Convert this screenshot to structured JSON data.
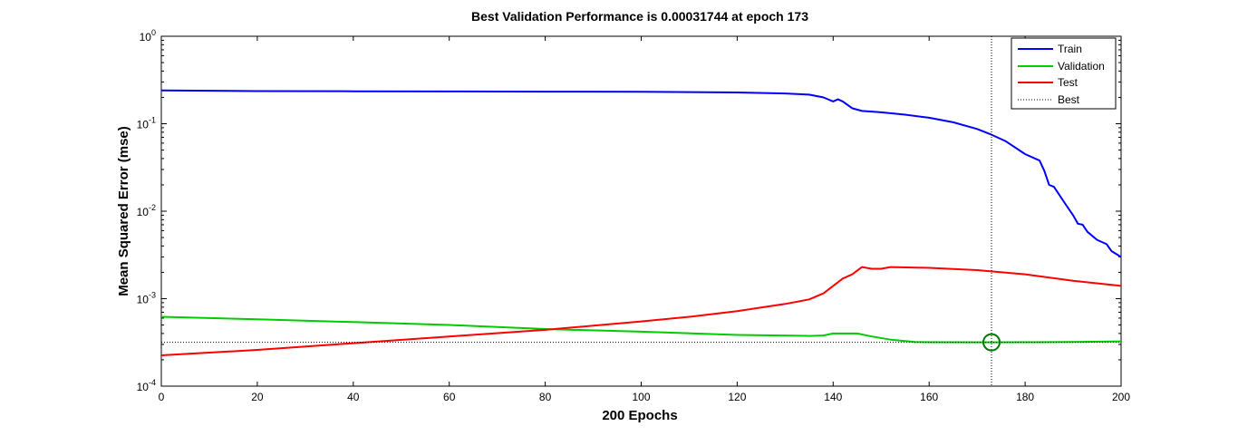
{
  "chart_data": {
    "type": "line",
    "title": "Best Validation Performance is 0.00031744 at epoch 173",
    "xlabel": "200 Epochs",
    "ylabel": "Mean Squared Error  (mse)",
    "xlim": [
      0,
      200
    ],
    "ylim": [
      0.0001,
      1
    ],
    "yscale": "log",
    "grid": false,
    "legend_position": "top-right",
    "x_ticks": [
      0,
      20,
      40,
      60,
      80,
      100,
      120,
      140,
      160,
      180,
      200
    ],
    "y_ticks": [
      {
        "value": 0.0001,
        "base": "10",
        "exp": "-4"
      },
      {
        "value": 0.001,
        "base": "10",
        "exp": "-3"
      },
      {
        "value": 0.01,
        "base": "10",
        "exp": "-2"
      },
      {
        "value": 0.1,
        "base": "10",
        "exp": "-1"
      },
      {
        "value": 1,
        "base": "10",
        "exp": "0"
      }
    ],
    "series": [
      {
        "name": "Train",
        "color": "#0000ff",
        "style": "solid",
        "points": [
          [
            0,
            0.24
          ],
          [
            20,
            0.236
          ],
          [
            40,
            0.235
          ],
          [
            60,
            0.234
          ],
          [
            80,
            0.233
          ],
          [
            100,
            0.232
          ],
          [
            120,
            0.228
          ],
          [
            130,
            0.222
          ],
          [
            135,
            0.215
          ],
          [
            138,
            0.2
          ],
          [
            140,
            0.18
          ],
          [
            141,
            0.19
          ],
          [
            142,
            0.18
          ],
          [
            144,
            0.15
          ],
          [
            146,
            0.14
          ],
          [
            150,
            0.135
          ],
          [
            155,
            0.127
          ],
          [
            160,
            0.117
          ],
          [
            165,
            0.104
          ],
          [
            170,
            0.087
          ],
          [
            173,
            0.075
          ],
          [
            176,
            0.063
          ],
          [
            180,
            0.045
          ],
          [
            183,
            0.038
          ],
          [
            184,
            0.029
          ],
          [
            185,
            0.02
          ],
          [
            186,
            0.019
          ],
          [
            188,
            0.013
          ],
          [
            190,
            0.009
          ],
          [
            191,
            0.0072
          ],
          [
            192,
            0.007
          ],
          [
            193,
            0.0058
          ],
          [
            195,
            0.0047
          ],
          [
            197,
            0.0042
          ],
          [
            198,
            0.0035
          ],
          [
            200,
            0.003
          ]
        ]
      },
      {
        "name": "Validation",
        "color": "#00cc00",
        "style": "solid",
        "points": [
          [
            0,
            0.00062
          ],
          [
            20,
            0.00058
          ],
          [
            40,
            0.00054
          ],
          [
            60,
            0.0005
          ],
          [
            80,
            0.00045
          ],
          [
            100,
            0.00042
          ],
          [
            120,
            0.000385
          ],
          [
            135,
            0.000375
          ],
          [
            138,
            0.00038
          ],
          [
            140,
            0.0004
          ],
          [
            145,
            0.0004
          ],
          [
            148,
            0.00037
          ],
          [
            152,
            0.00034
          ],
          [
            157,
            0.00032
          ],
          [
            160,
            0.000318
          ],
          [
            173,
            0.000317
          ],
          [
            180,
            0.000318
          ],
          [
            190,
            0.00032
          ],
          [
            200,
            0.000325
          ]
        ]
      },
      {
        "name": "Test",
        "color": "#ff0000",
        "style": "solid",
        "points": [
          [
            0,
            0.000225
          ],
          [
            20,
            0.00026
          ],
          [
            40,
            0.00031
          ],
          [
            60,
            0.00037
          ],
          [
            80,
            0.00044
          ],
          [
            100,
            0.00055
          ],
          [
            110,
            0.00062
          ],
          [
            120,
            0.00072
          ],
          [
            130,
            0.00087
          ],
          [
            135,
            0.00098
          ],
          [
            138,
            0.00115
          ],
          [
            140,
            0.0014
          ],
          [
            142,
            0.0017
          ],
          [
            144,
            0.0019
          ],
          [
            146,
            0.0023
          ],
          [
            148,
            0.0022
          ],
          [
            150,
            0.0022
          ],
          [
            152,
            0.0023
          ],
          [
            160,
            0.00225
          ],
          [
            170,
            0.00212
          ],
          [
            180,
            0.0019
          ],
          [
            190,
            0.0016
          ],
          [
            200,
            0.0014
          ]
        ]
      },
      {
        "name": "Best",
        "color": "#000000",
        "style": "dotted",
        "best_epoch": 173,
        "best_value": 0.00031744
      }
    ]
  }
}
